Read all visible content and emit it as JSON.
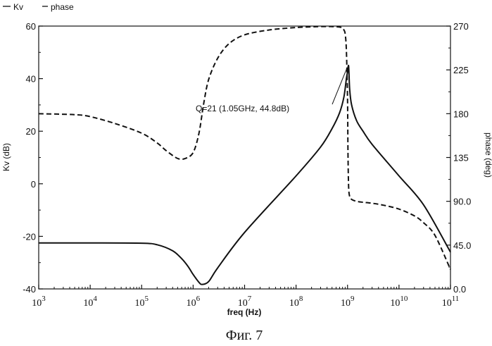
{
  "chart_data": {
    "type": "line",
    "legend_position": "top-left",
    "xlabel": "freq (Hz)",
    "ylabel_left": "Kv (dB)",
    "ylabel_right": "phase (deg)",
    "x_scale": "log",
    "xlim": [
      1000,
      100000000000
    ],
    "ylim_left": [
      -40,
      60
    ],
    "ylim_right": [
      0,
      270
    ],
    "grid": false,
    "x_ticks": [
      {
        "value": 1000,
        "base": "10",
        "exp": "3"
      },
      {
        "value": 10000,
        "base": "10",
        "exp": "4"
      },
      {
        "value": 100000,
        "base": "10",
        "exp": "5"
      },
      {
        "value": 1000000,
        "base": "10",
        "exp": "6"
      },
      {
        "value": 10000000,
        "base": "10",
        "exp": "7"
      },
      {
        "value": 100000000,
        "base": "10",
        "exp": "8"
      },
      {
        "value": 1000000000,
        "base": "10",
        "exp": "9"
      },
      {
        "value": 10000000000,
        "base": "10",
        "exp": "10"
      },
      {
        "value": 100000000000,
        "base": "10",
        "exp": "11"
      }
    ],
    "y_left_ticks": [
      {
        "value": 60,
        "label": "60"
      },
      {
        "value": 40,
        "label": "40"
      },
      {
        "value": 20,
        "label": "20"
      },
      {
        "value": 0,
        "label": "0"
      },
      {
        "value": -20,
        "label": "-20"
      },
      {
        "value": -40,
        "label": "-40"
      }
    ],
    "y_right_ticks": [
      {
        "value": 270,
        "label": "270"
      },
      {
        "value": 225,
        "label": "225"
      },
      {
        "value": 180,
        "label": "180"
      },
      {
        "value": 135,
        "label": "135"
      },
      {
        "value": 90,
        "label": "90.0"
      },
      {
        "value": 45,
        "label": "45.0"
      },
      {
        "value": 0,
        "label": "0.0"
      }
    ],
    "series": [
      {
        "name": "Kv",
        "axis": "left",
        "style": "solid",
        "x": [
          1000,
          10000,
          100000,
          200000,
          400000,
          600000,
          800000,
          1000000,
          1300000,
          1500000,
          2000000,
          3000000,
          10000000,
          100000000,
          300000000,
          500000000,
          700000000,
          850000000,
          950000000,
          1000000000,
          1050000000,
          1100000000,
          1200000000,
          1500000000,
          2000000000,
          3000000000,
          10000000000,
          30000000000,
          100000000000
        ],
        "y": [
          -22.5,
          -22.5,
          -22.6,
          -23.2,
          -25.5,
          -28.5,
          -31.5,
          -34.5,
          -37.5,
          -38.3,
          -37.2,
          -32,
          -18.5,
          3,
          14,
          21,
          27,
          33,
          40,
          42.5,
          44.8,
          36,
          30,
          24,
          20,
          15,
          3,
          -8,
          -26
        ]
      },
      {
        "name": "phase",
        "axis": "right",
        "style": "dashed",
        "x": [
          1000,
          5000,
          10000,
          30000,
          100000,
          200000,
          300000,
          500000,
          700000,
          1000000,
          1300000,
          1600000,
          2000000,
          3000000,
          5000000,
          10000000,
          30000000,
          100000000,
          300000000,
          500000000,
          700000000,
          800000000,
          850000000,
          900000000,
          950000000,
          1000000000,
          1020000000,
          1050000000,
          1100000000,
          1200000000,
          1500000000,
          2000000000,
          3000000000,
          5000000000,
          10000000000,
          20000000000,
          30000000000,
          50000000000,
          100000000000
        ],
        "y": [
          180,
          179,
          177,
          170,
          160,
          150,
          142,
          134,
          134,
          140,
          160,
          190,
          215,
          237,
          252,
          261,
          266,
          268.5,
          269.5,
          269.5,
          269,
          268,
          266,
          262,
          245,
          195,
          140,
          105,
          95,
          92,
          90,
          89,
          88,
          86,
          82,
          75,
          68,
          55,
          20
        ]
      }
    ],
    "annotations": [
      {
        "text": "Q=21 (1.05GHz, 44.8dB)",
        "x": 1050000000,
        "y": 44.8
      }
    ],
    "caption": "Фиг. 7"
  }
}
